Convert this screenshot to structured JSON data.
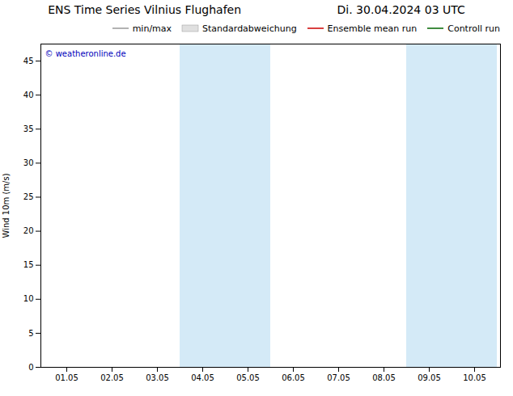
{
  "chart_data": {
    "type": "line",
    "title": "ENS Time Series Vilnius Flughafen",
    "subtitle": "Di. 30.04.2024 03 UTC",
    "y_label": "Wind 10m (m/s)",
    "categories": [
      "01.05",
      "02.05",
      "03.05",
      "04.05",
      "05.05",
      "06.05",
      "07.05",
      "08.05",
      "09.05",
      "10.05"
    ],
    "series": [
      {
        "name": "min/max",
        "color": "#999999",
        "type": "line",
        "values": [
          null,
          null,
          null,
          null,
          null,
          null,
          null,
          null,
          null,
          null
        ]
      },
      {
        "name": "Standardabweichung",
        "color": "#e0e0e0",
        "type": "area",
        "values": [
          null,
          null,
          null,
          null,
          null,
          null,
          null,
          null,
          null,
          null
        ]
      },
      {
        "name": "Ensemble mean run",
        "color": "#cc0000",
        "type": "line",
        "values": [
          null,
          null,
          null,
          null,
          null,
          null,
          null,
          null,
          null,
          null
        ]
      },
      {
        "name": "Controll run",
        "color": "#006600",
        "type": "line",
        "values": [
          null,
          null,
          null,
          null,
          null,
          null,
          null,
          null,
          null,
          null
        ]
      }
    ],
    "bands": {
      "categories": [
        "04.05",
        "05.05",
        "09.05",
        "10.05"
      ],
      "color": "#d4eaf7"
    },
    "annotations": [
      {
        "text": "© weatheronline.de",
        "color": "#0000bb"
      }
    ],
    "ylim": [
      0,
      47.5
    ],
    "yticks": [
      0,
      5,
      10,
      15,
      20,
      25,
      30,
      35,
      40,
      45
    ],
    "grid": false,
    "legend": "upper right"
  }
}
